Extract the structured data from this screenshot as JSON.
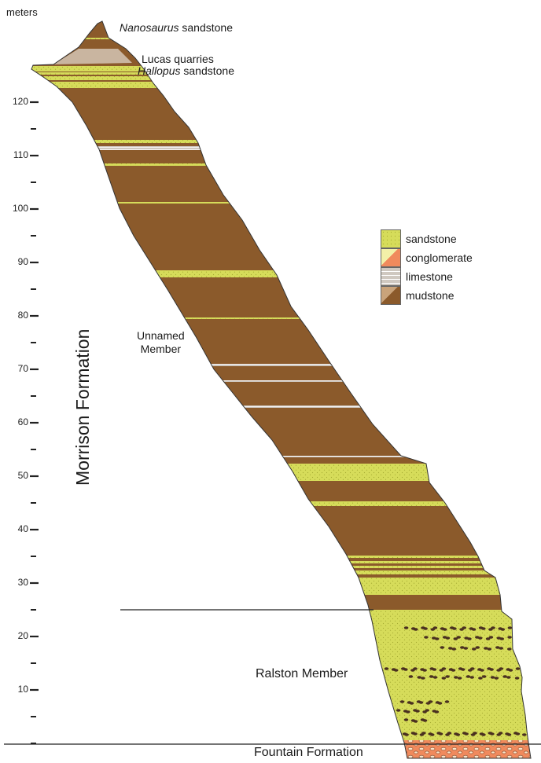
{
  "axis": {
    "unit_label": "meters",
    "ticks": [
      {
        "m": 0,
        "label": ""
      },
      {
        "m": 5,
        "label": ""
      },
      {
        "m": 10,
        "label": "10"
      },
      {
        "m": 15,
        "label": ""
      },
      {
        "m": 20,
        "label": "20"
      },
      {
        "m": 25,
        "label": ""
      },
      {
        "m": 30,
        "label": "30"
      },
      {
        "m": 35,
        "label": ""
      },
      {
        "m": 40,
        "label": "40"
      },
      {
        "m": 45,
        "label": ""
      },
      {
        "m": 50,
        "label": "50"
      },
      {
        "m": 55,
        "label": ""
      },
      {
        "m": 60,
        "label": "60"
      },
      {
        "m": 65,
        "label": ""
      },
      {
        "m": 70,
        "label": "70"
      },
      {
        "m": 75,
        "label": ""
      },
      {
        "m": 80,
        "label": "80"
      },
      {
        "m": 85,
        "label": ""
      },
      {
        "m": 90,
        "label": "90"
      },
      {
        "m": 95,
        "label": ""
      },
      {
        "m": 100,
        "label": "100"
      },
      {
        "m": 105,
        "label": ""
      },
      {
        "m": 110,
        "label": "110"
      },
      {
        "m": 115,
        "label": ""
      },
      {
        "m": 120,
        "label": "120"
      }
    ]
  },
  "labels": {
    "nanosaurus_name": "Nanosaurus",
    "nanosaurus_rest": " sandstone",
    "lucas_quarries": "Lucas quarries",
    "hallopus_name": "Hallopus",
    "hallopus_rest": " sandstone",
    "unnamed_line1": "Unnamed",
    "unnamed_line2": "Member",
    "formation": "Morrison Formation",
    "ralston": "Ralston Member",
    "fountain": "Fountain Formation"
  },
  "legend": [
    {
      "key": "sandstone",
      "label": "sandstone"
    },
    {
      "key": "conglomerate",
      "label": "conglomerate"
    },
    {
      "key": "limestone",
      "label": "limestone"
    },
    {
      "key": "mudstone",
      "label": "mudstone"
    }
  ],
  "colors": {
    "mudstone": "#8b5a2b",
    "sandstone": "#d6dc5a",
    "limestone": "#cfc8c0",
    "conglomerate": "#f08a5d",
    "lucas_lens": "#c9b5a0"
  }
}
